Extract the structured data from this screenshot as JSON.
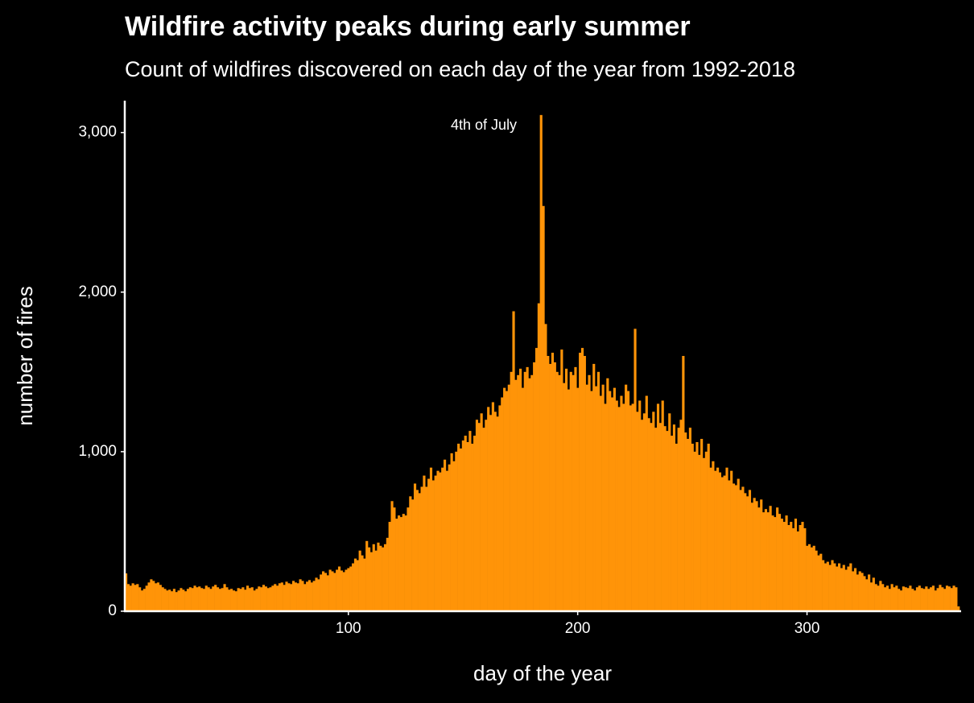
{
  "chart_data": {
    "type": "bar",
    "title": "Wildfire activity peaks during early summer",
    "subtitle": "Count of wildfires discovered on each day of the year from 1992-2018",
    "xlabel": "day of the year",
    "ylabel": "number of fires",
    "annotations": [
      {
        "text": "4th of July",
        "x": 184
      }
    ],
    "color": "#ff9408",
    "xlim": [
      2.5,
      366.5
    ],
    "ylim": [
      0,
      3200
    ],
    "xticks": [
      100,
      200,
      300
    ],
    "yticks": [
      0,
      {
        "value": 1000,
        "label": "1,000"
      },
      {
        "value": 2000,
        "label": "2,000"
      },
      {
        "value": 3000,
        "label": "3,000"
      }
    ],
    "grid": false,
    "x": [
      3,
      4,
      5,
      6,
      7,
      8,
      9,
      10,
      11,
      12,
      13,
      14,
      15,
      16,
      17,
      18,
      19,
      20,
      21,
      22,
      23,
      24,
      25,
      26,
      27,
      28,
      29,
      30,
      31,
      32,
      33,
      34,
      35,
      36,
      37,
      38,
      39,
      40,
      41,
      42,
      43,
      44,
      45,
      46,
      47,
      48,
      49,
      50,
      51,
      52,
      53,
      54,
      55,
      56,
      57,
      58,
      59,
      60,
      61,
      62,
      63,
      64,
      65,
      66,
      67,
      68,
      69,
      70,
      71,
      72,
      73,
      74,
      75,
      76,
      77,
      78,
      79,
      80,
      81,
      82,
      83,
      84,
      85,
      86,
      87,
      88,
      89,
      90,
      91,
      92,
      93,
      94,
      95,
      96,
      97,
      98,
      99,
      100,
      101,
      102,
      103,
      104,
      105,
      106,
      107,
      108,
      109,
      110,
      111,
      112,
      113,
      114,
      115,
      116,
      117,
      118,
      119,
      120,
      121,
      122,
      123,
      124,
      125,
      126,
      127,
      128,
      129,
      130,
      131,
      132,
      133,
      134,
      135,
      136,
      137,
      138,
      139,
      140,
      141,
      142,
      143,
      144,
      145,
      146,
      147,
      148,
      149,
      150,
      151,
      152,
      153,
      154,
      155,
      156,
      157,
      158,
      159,
      160,
      161,
      162,
      163,
      164,
      165,
      166,
      167,
      168,
      169,
      170,
      171,
      172,
      173,
      174,
      175,
      176,
      177,
      178,
      179,
      180,
      181,
      182,
      183,
      184,
      185,
      186,
      187,
      188,
      189,
      190,
      191,
      192,
      193,
      194,
      195,
      196,
      197,
      198,
      199,
      200,
      201,
      202,
      203,
      204,
      205,
      206,
      207,
      208,
      209,
      210,
      211,
      212,
      213,
      214,
      215,
      216,
      217,
      218,
      219,
      220,
      221,
      222,
      223,
      224,
      225,
      226,
      227,
      228,
      229,
      230,
      231,
      232,
      233,
      234,
      235,
      236,
      237,
      238,
      239,
      240,
      241,
      242,
      243,
      244,
      245,
      246,
      247,
      248,
      249,
      250,
      251,
      252,
      253,
      254,
      255,
      256,
      257,
      258,
      259,
      260,
      261,
      262,
      263,
      264,
      265,
      266,
      267,
      268,
      269,
      270,
      271,
      272,
      273,
      274,
      275,
      276,
      277,
      278,
      279,
      280,
      281,
      282,
      283,
      284,
      285,
      286,
      287,
      288,
      289,
      290,
      291,
      292,
      293,
      294,
      295,
      296,
      297,
      298,
      299,
      300,
      301,
      302,
      303,
      304,
      305,
      306,
      307,
      308,
      309,
      310,
      311,
      312,
      313,
      314,
      315,
      316,
      317,
      318,
      319,
      320,
      321,
      322,
      323,
      324,
      325,
      326,
      327,
      328,
      329,
      330,
      331,
      332,
      333,
      334,
      335,
      336,
      337,
      338,
      339,
      340,
      341,
      342,
      343,
      344,
      345,
      346,
      347,
      348,
      349,
      350,
      351,
      352,
      353,
      354,
      355,
      356,
      357,
      358,
      359,
      360,
      361,
      362,
      363,
      364,
      365,
      366
    ],
    "values": [
      237,
      170,
      160,
      175,
      165,
      170,
      150,
      130,
      140,
      160,
      180,
      200,
      190,
      175,
      180,
      165,
      150,
      140,
      130,
      135,
      125,
      140,
      120,
      130,
      145,
      135,
      125,
      140,
      150,
      145,
      160,
      150,
      155,
      145,
      140,
      160,
      150,
      140,
      155,
      165,
      150,
      140,
      145,
      170,
      150,
      135,
      140,
      130,
      125,
      145,
      140,
      150,
      135,
      160,
      145,
      150,
      130,
      140,
      155,
      150,
      165,
      155,
      145,
      150,
      160,
      170,
      160,
      175,
      180,
      165,
      185,
      175,
      170,
      190,
      180,
      175,
      200,
      190,
      170,
      185,
      195,
      180,
      190,
      210,
      200,
      230,
      250,
      240,
      225,
      260,
      250,
      240,
      260,
      280,
      255,
      245,
      260,
      270,
      280,
      300,
      330,
      320,
      380,
      350,
      330,
      440,
      400,
      370,
      420,
      380,
      430,
      410,
      400,
      420,
      460,
      560,
      690,
      650,
      580,
      600,
      590,
      610,
      600,
      650,
      720,
      700,
      800,
      760,
      740,
      780,
      850,
      780,
      830,
      900,
      820,
      850,
      880,
      870,
      900,
      950,
      880,
      920,
      990,
      940,
      1000,
      1050,
      1020,
      1070,
      1100,
      1060,
      1130,
      1050,
      1100,
      1200,
      1180,
      1240,
      1150,
      1200,
      1280,
      1230,
      1310,
      1250,
      1220,
      1290,
      1340,
      1400,
      1380,
      1420,
      1500,
      1880,
      1450,
      1480,
      1520,
      1400,
      1500,
      1530,
      1460,
      1480,
      1560,
      1650,
      1930,
      3110,
      2540,
      1800,
      1600,
      1550,
      1620,
      1560,
      1500,
      1480,
      1640,
      1430,
      1520,
      1390,
      1500,
      1480,
      1530,
      1400,
      1620,
      1650,
      1600,
      1420,
      1480,
      1380,
      1550,
      1410,
      1500,
      1350,
      1420,
      1300,
      1460,
      1380,
      1340,
      1400,
      1320,
      1280,
      1350,
      1300,
      1420,
      1380,
      1290,
      1300,
      1770,
      1250,
      1320,
      1200,
      1240,
      1350,
      1210,
      1180,
      1250,
      1150,
      1300,
      1180,
      1320,
      1160,
      1130,
      1240,
      1100,
      1170,
      1050,
      1150,
      1200,
      1600,
      1120,
      1080,
      1150,
      1050,
      1000,
      1060,
      980,
      1080,
      960,
      1000,
      1050,
      900,
      940,
      880,
      900,
      870,
      840,
      850,
      900,
      820,
      880,
      800,
      790,
      830,
      760,
      780,
      740,
      720,
      760,
      680,
      710,
      690,
      650,
      700,
      620,
      640,
      620,
      660,
      600,
      590,
      650,
      610,
      580,
      560,
      600,
      540,
      560,
      520,
      580,
      500,
      540,
      560,
      520,
      410,
      420,
      400,
      410,
      380,
      350,
      360,
      320,
      300,
      310,
      290,
      320,
      300,
      280,
      300,
      270,
      290,
      260,
      280,
      300,
      250,
      270,
      230,
      250,
      240,
      220,
      200,
      230,
      180,
      210,
      170,
      160,
      190,
      170,
      150,
      160,
      140,
      170,
      150,
      160,
      140,
      130,
      155,
      150,
      145,
      160,
      140,
      130,
      150,
      160,
      145,
      140,
      155,
      140,
      150,
      160,
      130,
      145,
      165,
      150,
      140,
      160,
      155,
      145,
      160,
      150,
      30
    ]
  }
}
